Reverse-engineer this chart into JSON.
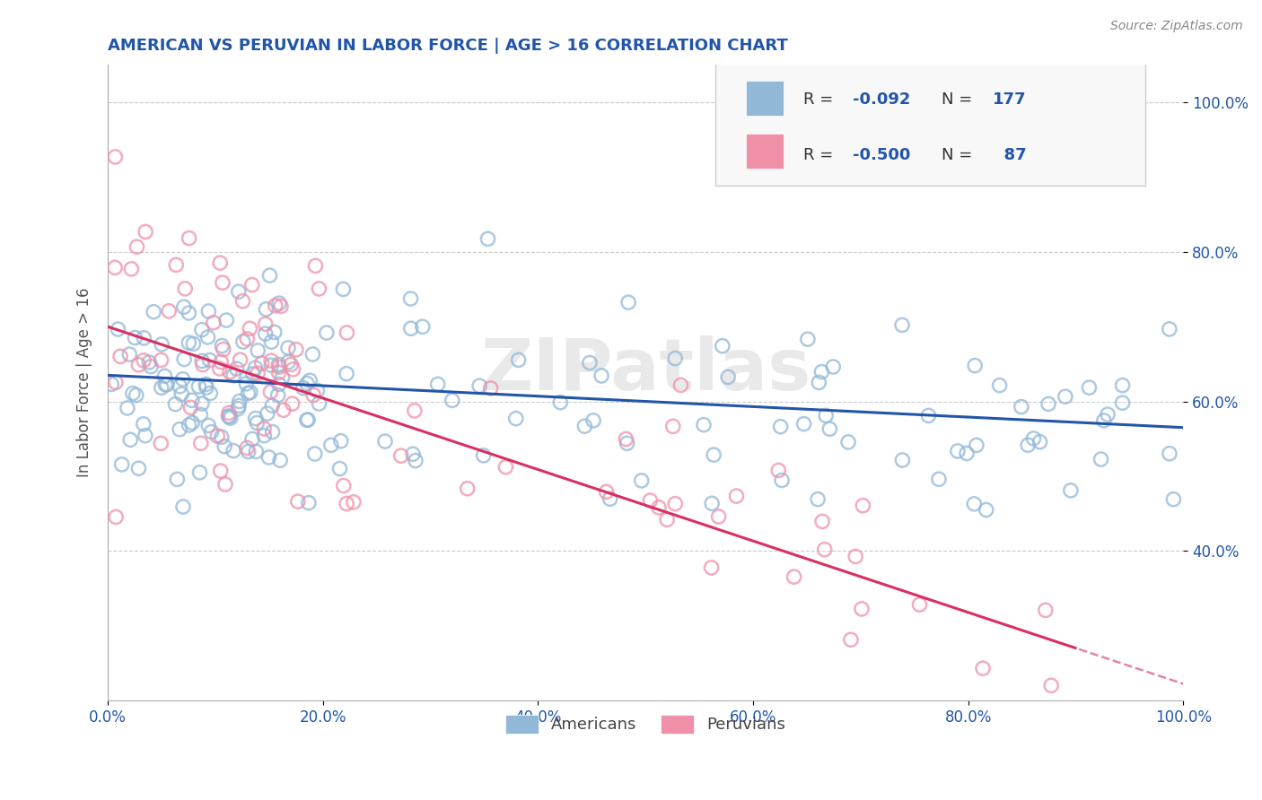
{
  "title": "AMERICAN VS PERUVIAN IN LABOR FORCE | AGE > 16 CORRELATION CHART",
  "source": "Source: ZipAtlas.com",
  "ylabel": "In Labor Force | Age > 16",
  "xlim": [
    0.0,
    1.0
  ],
  "ylim": [
    0.2,
    1.05
  ],
  "x_ticks": [
    0.0,
    0.2,
    0.4,
    0.6,
    0.8,
    1.0
  ],
  "x_tick_labels": [
    "0.0%",
    "20.0%",
    "40.0%",
    "60.0%",
    "80.0%",
    "100.0%"
  ],
  "y_ticks": [
    0.4,
    0.6,
    0.8,
    1.0
  ],
  "y_tick_labels": [
    "40.0%",
    "60.0%",
    "80.0%",
    "100.0%"
  ],
  "american_color": "#92b8d8",
  "peruvian_color": "#f090a8",
  "american_line_color": "#2255aa",
  "peruvian_line_color": "#d83060",
  "american_R": -0.092,
  "american_N": 177,
  "peruvian_R": -0.5,
  "peruvian_N": 87,
  "watermark": "ZIPatlas",
  "background_color": "#ffffff",
  "grid_color": "#cccccc",
  "title_color": "#2255aa",
  "axis_label_color": "#555555",
  "tick_label_color": "#2255aa",
  "legend_face_color": "#f8f8f8",
  "legend_edge_color": "#cccccc",
  "amer_line_start_y": 0.635,
  "amer_line_end_y": 0.565,
  "peru_line_start_y": 0.7,
  "peru_line_end_y": 0.27
}
